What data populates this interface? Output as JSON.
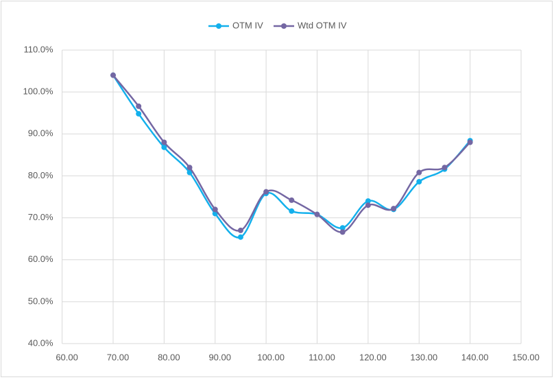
{
  "chart_data": {
    "type": "line",
    "x": [
      70,
      75,
      80,
      85,
      90,
      95,
      100,
      105,
      110,
      115,
      120,
      125,
      130,
      135,
      140
    ],
    "series": [
      {
        "name": "OTM IV",
        "color": "#13b0ec",
        "values": [
          104,
          94.8,
          86.8,
          80.8,
          71,
          65.4,
          75.8,
          71.6,
          70.8,
          67.6,
          74,
          72,
          78.6,
          81.6,
          88.4
        ]
      },
      {
        "name": "Wtd OTM IV",
        "color": "#7467a3",
        "values": [
          104,
          96.6,
          88,
          82,
          72,
          67,
          76.2,
          74.2,
          70.8,
          66.6,
          73,
          72.2,
          80.8,
          82,
          88
        ]
      }
    ],
    "xlim": [
      60,
      150
    ],
    "xticks": [
      {
        "value": 60,
        "label": "60.00"
      },
      {
        "value": 70,
        "label": "70.00"
      },
      {
        "value": 80,
        "label": "80.00"
      },
      {
        "value": 90,
        "label": "90.00"
      },
      {
        "value": 100,
        "label": "100.00"
      },
      {
        "value": 110,
        "label": "110.00"
      },
      {
        "value": 120,
        "label": "120.00"
      },
      {
        "value": 130,
        "label": "130.00"
      },
      {
        "value": 140,
        "label": "140.00"
      },
      {
        "value": 150,
        "label": "150.00"
      }
    ],
    "ylim": [
      40,
      110
    ],
    "yticks": [
      {
        "value": 40,
        "label": "40.0%"
      },
      {
        "value": 50,
        "label": "50.0%"
      },
      {
        "value": 60,
        "label": "60.0%"
      },
      {
        "value": 70,
        "label": "70.0%"
      },
      {
        "value": 80,
        "label": "80.0%"
      },
      {
        "value": 90,
        "label": "90.0%"
      },
      {
        "value": 100,
        "label": "100.0%"
      },
      {
        "value": 110,
        "label": "110.0%"
      }
    ],
    "grid": true,
    "smooth": true,
    "legend": "top"
  }
}
